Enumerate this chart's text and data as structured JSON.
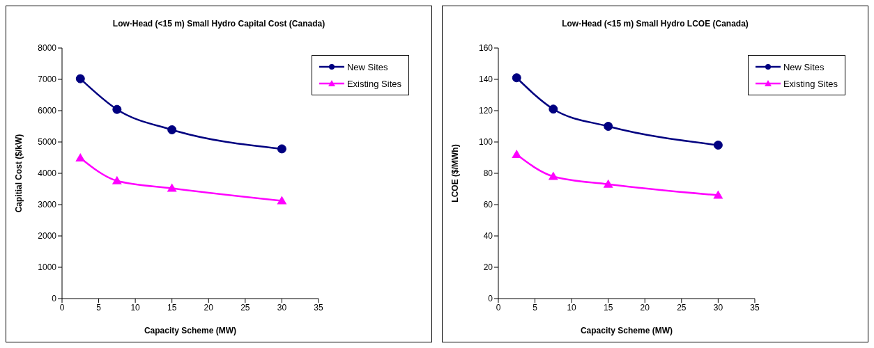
{
  "chart_data": [
    {
      "type": "line",
      "title": "Low-Head (<15 m) Small Hydro Capital Cost (Canada)",
      "xlabel": "Capacity Scheme (MW)",
      "ylabel": "Capitial Cost ($/kW)",
      "x": [
        2.5,
        7.5,
        15,
        30
      ],
      "series": [
        {
          "name": "New Sites",
          "color": "#000080",
          "marker": "circle",
          "values": [
            7020,
            6040,
            5390,
            4780
          ]
        },
        {
          "name": "Existing Sites",
          "color": "#ff00ff",
          "marker": "triangle",
          "values": [
            4490,
            3760,
            3520,
            3120
          ]
        }
      ],
      "xlim": [
        0,
        35
      ],
      "xticks": [
        0,
        5,
        10,
        15,
        20,
        25,
        30,
        35
      ],
      "ylim": [
        0,
        8000
      ],
      "yticks": [
        0,
        1000,
        2000,
        3000,
        4000,
        5000,
        6000,
        7000,
        8000
      ],
      "grid": false,
      "legend": "top right",
      "line_style": "solid"
    },
    {
      "type": "line",
      "title": "Low-Head (<15 m) Small Hydro LCOE (Canada)",
      "xlabel": "Capacity Scheme (MW)",
      "ylabel": "LCOE ($/MWh)",
      "x": [
        2.5,
        7.5,
        15,
        30
      ],
      "series": [
        {
          "name": "New Sites",
          "color": "#000080",
          "marker": "circle",
          "values": [
            141,
            121,
            110,
            98
          ]
        },
        {
          "name": "Existing Sites",
          "color": "#ff00ff",
          "marker": "triangle",
          "values": [
            92,
            78,
            73,
            66
          ]
        }
      ],
      "xlim": [
        0,
        35
      ],
      "xticks": [
        0,
        5,
        10,
        15,
        20,
        25,
        30,
        35
      ],
      "ylim": [
        0,
        160
      ],
      "yticks": [
        0,
        20,
        40,
        60,
        80,
        100,
        120,
        140,
        160
      ],
      "grid": false,
      "legend": "top right",
      "line_style": "solid"
    }
  ]
}
